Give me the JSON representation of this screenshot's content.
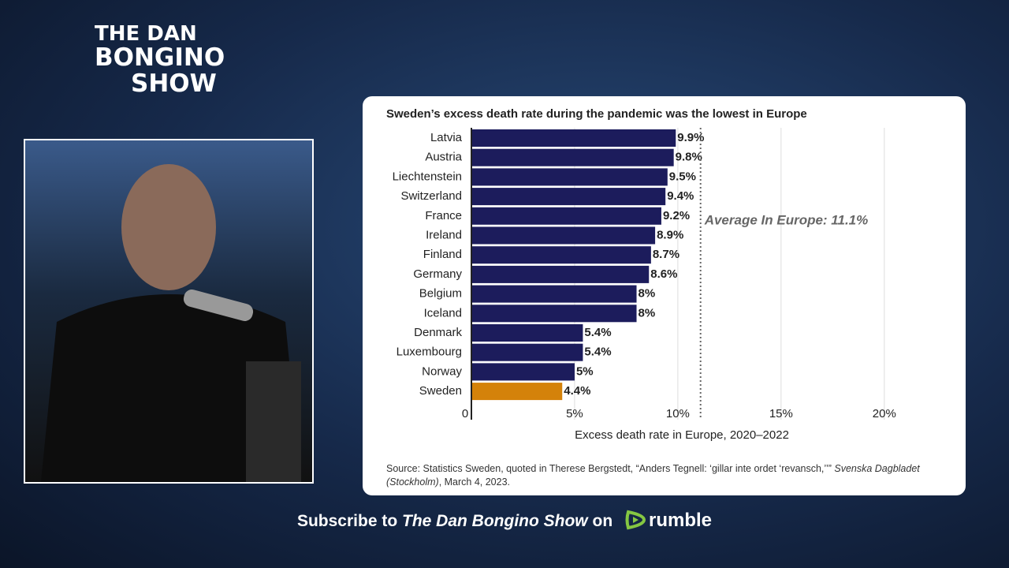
{
  "logo": {
    "line1": "THE DAN",
    "line2": "BONGINO",
    "line3": "SHOW"
  },
  "chart_data": {
    "type": "hbar",
    "title": "Sweden’s excess death rate during the pandemic was the lowest in Europe",
    "categories": [
      "Latvia",
      "Austria",
      "Liechtenstein",
      "Switzerland",
      "France",
      "Ireland",
      "Finland",
      "Germany",
      "Belgium",
      "Iceland",
      "Denmark",
      "Luxembourg",
      "Norway",
      "Sweden"
    ],
    "values": [
      9.9,
      9.8,
      9.5,
      9.4,
      9.2,
      8.9,
      8.7,
      8.6,
      8,
      8,
      5.4,
      5.4,
      5,
      4.4
    ],
    "value_labels": [
      "9.9%",
      "9.8%",
      "9.5%",
      "9.4%",
      "9.2%",
      "8.9%",
      "8.7%",
      "8.6%",
      "8%",
      "8%",
      "5.4%",
      "5.4%",
      "5%",
      "4.4%"
    ],
    "colors": [
      "#1c1c5c",
      "#1c1c5c",
      "#1c1c5c",
      "#1c1c5c",
      "#1c1c5c",
      "#1c1c5c",
      "#1c1c5c",
      "#1c1c5c",
      "#1c1c5c",
      "#1c1c5c",
      "#1c1c5c",
      "#1c1c5c",
      "#1c1c5c",
      "#d4820a"
    ],
    "xlim": [
      0,
      21
    ],
    "xticks": [
      0,
      {
        "value": 5,
        "label": "5%"
      },
      {
        "value": 10,
        "label": "10%"
      },
      {
        "value": 15,
        "label": "15%"
      },
      {
        "value": 20,
        "label": "20%"
      }
    ],
    "grid": true,
    "xlabel": "Excess death rate in Europe, 2020–2022",
    "reference_line": {
      "value": 11.1,
      "label": "Average In Europe: 11.1%"
    },
    "source": [
      "Source: Statistics Sweden, quoted in Therese Bergstedt, “Anders Tegnell: ‘gillar inte ordet ‘revansch,’’” ",
      "Svenska Dagbladet (Stockholm)",
      ", March 4, 2023."
    ]
  },
  "footer": {
    "lead": "Subscribe to ",
    "show": "The Dan Bongino Show",
    "on": " on",
    "brand": "rumble"
  }
}
